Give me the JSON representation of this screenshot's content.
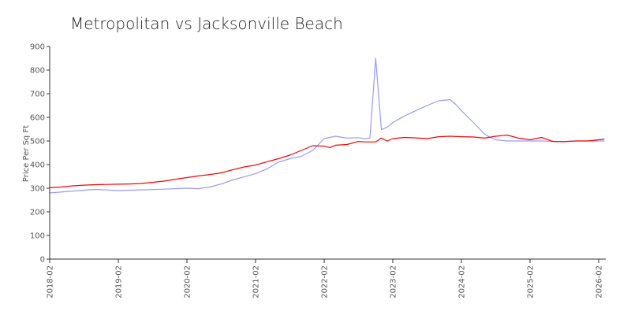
{
  "chart_data": {
    "type": "line",
    "title": "Metropolitan vs Jacksonville Beach",
    "ylabel": "Price Per Sq Ft",
    "xlabel": "",
    "ylim": [
      0,
      900
    ],
    "yticks": [
      "0",
      "100",
      "200",
      "300",
      "400",
      "500",
      "600",
      "700",
      "800",
      "900"
    ],
    "xticks": [
      "2018-02",
      "2019-02",
      "2020-02",
      "2021-02",
      "2022-02",
      "2023-02",
      "2024-02",
      "2025-02",
      "2026-02"
    ],
    "grid": false,
    "legend": "none",
    "series": [
      {
        "color": "#ff0000",
        "x": [
          "2018-02",
          "2018-04",
          "2018-06",
          "2018-08",
          "2018-10",
          "2018-12",
          "2019-02",
          "2019-04",
          "2019-06",
          "2019-08",
          "2019-10",
          "2019-12",
          "2020-02",
          "2020-04",
          "2020-06",
          "2020-08",
          "2020-10",
          "2020-12",
          "2021-02",
          "2021-04",
          "2021-06",
          "2021-08",
          "2021-10",
          "2021-12",
          "2022-02",
          "2022-03",
          "2022-04",
          "2022-06",
          "2022-08",
          "2022-09",
          "2022-11",
          "2022-12",
          "2023-01",
          "2023-02",
          "2023-04",
          "2023-06",
          "2023-08",
          "2023-10",
          "2023-12",
          "2024-02",
          "2024-04",
          "2024-06",
          "2024-08",
          "2024-10",
          "2024-12",
          "2025-02",
          "2025-04",
          "2025-06",
          "2025-08",
          "2025-10",
          "2025-12",
          "2026-02",
          "2026-03"
        ],
        "values": [
          302,
          305,
          310,
          313,
          315,
          316,
          317,
          318,
          320,
          325,
          330,
          338,
          345,
          352,
          358,
          365,
          378,
          390,
          398,
          412,
          425,
          440,
          460,
          480,
          478,
          472,
          482,
          485,
          498,
          496,
          496,
          512,
          500,
          510,
          515,
          513,
          510,
          518,
          520,
          518,
          517,
          512,
          520,
          525,
          512,
          505,
          515,
          498,
          497,
          500,
          500,
          505,
          508
        ]
      },
      {
        "color": "#9999ff",
        "x": [
          "2018-02",
          "2018-06",
          "2018-10",
          "2019-02",
          "2019-06",
          "2019-10",
          "2020-02",
          "2020-04",
          "2020-06",
          "2020-08",
          "2020-10",
          "2020-12",
          "2021-02",
          "2021-04",
          "2021-06",
          "2021-08",
          "2021-10",
          "2021-12",
          "2022-02",
          "2022-04",
          "2022-06",
          "2022-08",
          "2022-09",
          "2022-10",
          "2022-11",
          "2022-12",
          "2023-01",
          "2023-02",
          "2023-04",
          "2023-06",
          "2023-08",
          "2023-10",
          "2023-12",
          "2024-01",
          "2024-02",
          "2024-04",
          "2024-06",
          "2024-07",
          "2024-08",
          "2024-10",
          "2024-12",
          "2025-02",
          "2025-04",
          "2025-06",
          "2025-08",
          "2025-10",
          "2025-12",
          "2026-03"
        ],
        "values": [
          280,
          288,
          295,
          290,
          293,
          296,
          300,
          298,
          305,
          318,
          335,
          348,
          362,
          382,
          410,
          425,
          435,
          460,
          510,
          520,
          512,
          514,
          510,
          512,
          850,
          548,
          558,
          578,
          605,
          628,
          650,
          670,
          675,
          655,
          628,
          580,
          530,
          515,
          505,
          500,
          500,
          500,
          500,
          498,
          498,
          500,
          500,
          500
        ]
      }
    ]
  }
}
